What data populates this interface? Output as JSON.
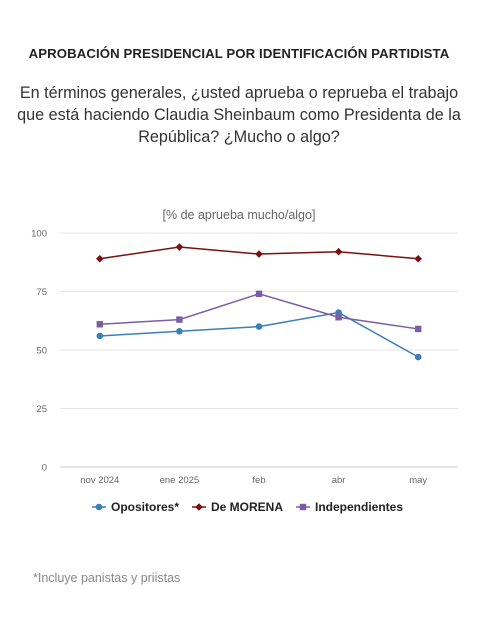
{
  "title": "APROBACIÓN PRESIDENCIAL POR IDENTIFICACIÓN PARTIDISTA",
  "question": "En términos generales, ¿usted aprueba o reprueba el trabajo que está haciendo Claudia Sheinbaum como Presidenta de la República? ¿Mucho o algo?",
  "footnote": "*Incluye panistas y priistas",
  "chart_data": {
    "type": "line",
    "subtitle": "[% de aprueba mucho/algo]",
    "categories": [
      "nov 2024",
      "ene 2025",
      "feb",
      "abr",
      "may"
    ],
    "ylim": [
      0,
      100
    ],
    "yticks": [
      0,
      25,
      50,
      75,
      100
    ],
    "grid": true,
    "legend_position": "bottom",
    "series": [
      {
        "name": "Opositores*",
        "values": [
          56,
          58,
          60,
          66,
          47
        ],
        "color": "#3a7fb8",
        "marker": "circle"
      },
      {
        "name": "De MORENA",
        "values": [
          89,
          94,
          91,
          92,
          89
        ],
        "color": "#7a1010",
        "marker": "diamond"
      },
      {
        "name": "Independientes",
        "values": [
          61,
          63,
          74,
          64,
          59
        ],
        "color": "#7b5da6",
        "marker": "square"
      }
    ]
  }
}
